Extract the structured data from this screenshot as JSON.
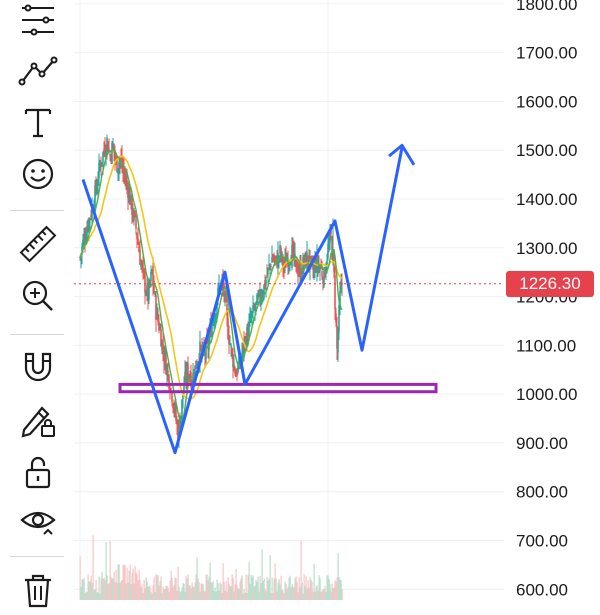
{
  "toolbar": {
    "tools": [
      {
        "icon": "trend-tools-icon"
      },
      {
        "icon": "pattern-tools-icon"
      },
      {
        "icon": "text-tool-icon"
      },
      {
        "icon": "emoji-icon"
      },
      {
        "icon": "ruler-icon"
      },
      {
        "icon": "zoom-in-icon"
      },
      {
        "icon": "magnet-icon"
      },
      {
        "icon": "lock-drawings-icon"
      },
      {
        "icon": "unlock-icon"
      },
      {
        "icon": "eye-icon"
      },
      {
        "icon": "trash-icon"
      }
    ]
  },
  "price_axis": {
    "labels": [
      "1800.00",
      "1700.00",
      "1600.00",
      "1500.00",
      "1400.00",
      "1300.00",
      "1200.00",
      "1100.00",
      "1000.00",
      "900.00",
      "800.00",
      "700.00",
      "600.00"
    ]
  },
  "last_price": {
    "value": "1226.30",
    "color": "#e5424d"
  },
  "colors": {
    "up": "#26a69a",
    "down": "#ef5350",
    "ma_fast": "#4caf50",
    "ma_slow": "#f5c518",
    "drawing_line": "#2962ff",
    "support_box": "#9c27b0"
  },
  "chart_data": {
    "type": "candlestick",
    "ylim": [
      578,
      1808
    ],
    "price_ticks": [
      600,
      700,
      800,
      900,
      1000,
      1100,
      1200,
      1300,
      1400,
      1500,
      1600,
      1700,
      1800
    ],
    "last_price": 1226.3,
    "close_path": [
      [
        0,
        1280
      ],
      [
        4,
        1320
      ],
      [
        8,
        1350
      ],
      [
        12,
        1380
      ],
      [
        16,
        1420
      ],
      [
        20,
        1470
      ],
      [
        24,
        1500
      ],
      [
        27,
        1520
      ],
      [
        30,
        1490
      ],
      [
        33,
        1510
      ],
      [
        36,
        1470
      ],
      [
        40,
        1480
      ],
      [
        44,
        1450
      ],
      [
        48,
        1420
      ],
      [
        52,
        1380
      ],
      [
        56,
        1340
      ],
      [
        60,
        1280
      ],
      [
        64,
        1230
      ],
      [
        68,
        1200
      ],
      [
        72,
        1250
      ],
      [
        76,
        1170
      ],
      [
        80,
        1130
      ],
      [
        84,
        1080
      ],
      [
        88,
        1040
      ],
      [
        92,
        1000
      ],
      [
        95,
        960
      ],
      [
        98,
        920
      ],
      [
        101,
        960
      ],
      [
        104,
        1020
      ],
      [
        108,
        1050
      ],
      [
        112,
        1030
      ],
      [
        116,
        1060
      ],
      [
        120,
        1090
      ],
      [
        124,
        1080
      ],
      [
        128,
        1100
      ],
      [
        132,
        1150
      ],
      [
        136,
        1180
      ],
      [
        140,
        1230
      ],
      [
        144,
        1210
      ],
      [
        148,
        1130
      ],
      [
        152,
        1080
      ],
      [
        156,
        1040
      ],
      [
        160,
        1070
      ],
      [
        164,
        1100
      ],
      [
        168,
        1130
      ],
      [
        172,
        1160
      ],
      [
        176,
        1180
      ],
      [
        180,
        1200
      ],
      [
        184,
        1220
      ],
      [
        188,
        1250
      ],
      [
        192,
        1280
      ],
      [
        196,
        1270
      ],
      [
        200,
        1290
      ],
      [
        204,
        1260
      ],
      [
        208,
        1280
      ],
      [
        212,
        1290
      ],
      [
        216,
        1260
      ],
      [
        220,
        1250
      ],
      [
        224,
        1270
      ],
      [
        228,
        1280
      ],
      [
        232,
        1250
      ],
      [
        236,
        1270
      ],
      [
        240,
        1260
      ],
      [
        244,
        1240
      ],
      [
        248,
        1300
      ],
      [
        251,
        1320
      ],
      [
        254,
        1240
      ],
      [
        257,
        1090
      ],
      [
        260,
        1200
      ],
      [
        262,
        1226
      ]
    ],
    "zigzag_drawing": [
      [
        3,
        1440
      ],
      [
        95,
        880
      ],
      [
        145,
        1250
      ],
      [
        165,
        1020
      ],
      [
        255,
        1355
      ],
      [
        282,
        1090
      ],
      [
        322,
        1505
      ]
    ],
    "arrow_head": [
      [
        309,
        1488
      ],
      [
        322,
        1510
      ],
      [
        334,
        1470
      ]
    ],
    "support_zone": {
      "x_start": 46,
      "x_end": 362,
      "y_low": 1005,
      "y_high": 1020
    },
    "volume_bars_count": 263
  }
}
